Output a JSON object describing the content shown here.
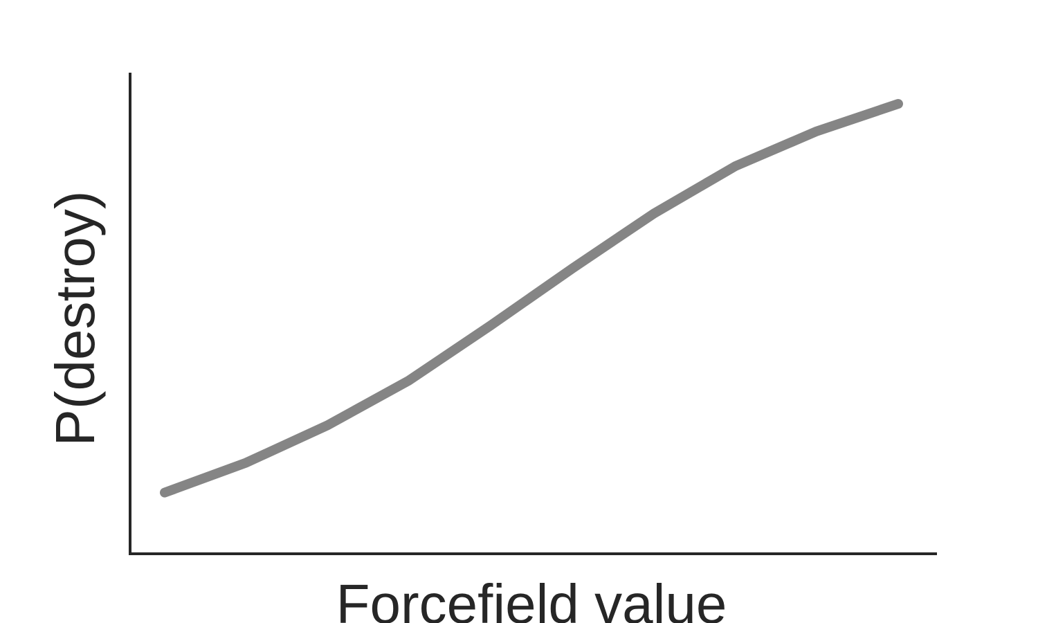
{
  "chart_data": {
    "type": "line",
    "title": "",
    "xlabel": "Forcefield value",
    "ylabel": "P(destroy)",
    "xlim": [
      0.0,
      1.0
    ],
    "ylim": [
      0.0,
      1.0
    ],
    "grid": false,
    "legend": "none",
    "series": [
      {
        "color": "#858585",
        "x": [
          0.0,
          0.111,
          0.222,
          0.333,
          0.444,
          0.556,
          0.667,
          0.778,
          0.889,
          1.0
        ],
        "y": [
          0.12,
          0.18,
          0.255,
          0.345,
          0.455,
          0.57,
          0.68,
          0.775,
          0.845,
          0.9
        ]
      }
    ]
  }
}
